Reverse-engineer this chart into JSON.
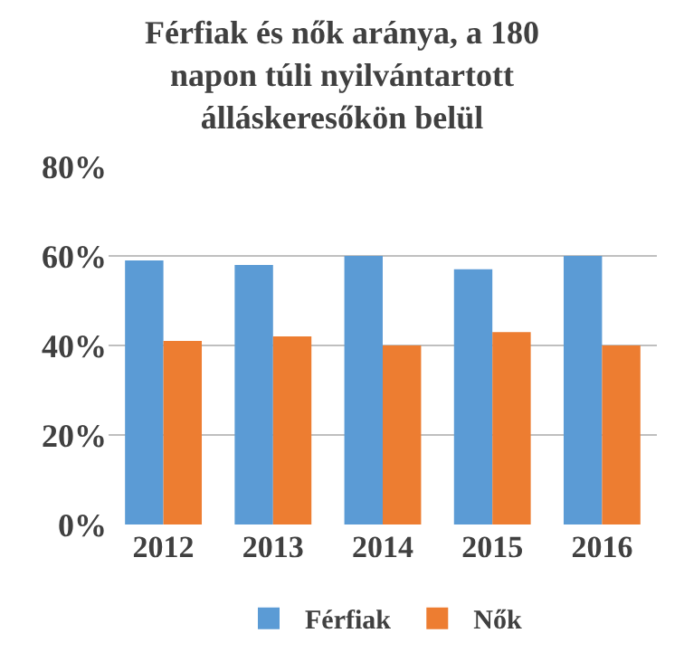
{
  "chart_data": {
    "type": "bar",
    "title": "Férfiak és nők aránya, a 180 napon túli nyilvántartott álláskeresőkön belül",
    "categories": [
      "2012",
      "2013",
      "2014",
      "2015",
      "2016"
    ],
    "series": [
      {
        "name": "Férfiak",
        "color": "#5b9bd5",
        "values": [
          59,
          58,
          60,
          57,
          60
        ]
      },
      {
        "name": "Nők",
        "color": "#ed7d31",
        "values": [
          41,
          42,
          40,
          43,
          40
        ]
      }
    ],
    "ylim": [
      0,
      80
    ],
    "yticks": [
      {
        "value": 0,
        "label": "0%"
      },
      {
        "value": 20,
        "label": "20%"
      },
      {
        "value": 40,
        "label": "40%"
      },
      {
        "value": 60,
        "label": "60%"
      },
      {
        "value": 80,
        "label": "80%"
      }
    ],
    "grid": "y",
    "legend": "bottom"
  }
}
